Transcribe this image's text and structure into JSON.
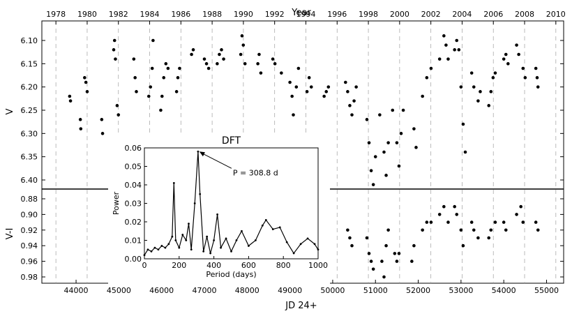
{
  "chart_data": {
    "type": "scatter",
    "top_axis_title": "Year",
    "bottom_axis_title": "JD 24+",
    "x_range": [
      43200,
      55400
    ],
    "year_range": [
      1977.1,
      2010.5
    ],
    "year_ticks": [
      "1978",
      "1980",
      "1982",
      "1984",
      "1986",
      "1988",
      "1990",
      "1992",
      "1994",
      "1996",
      "1998",
      "2000",
      "2002",
      "2004",
      "2006",
      "2008",
      "2010"
    ],
    "jd_ticks": [
      "44000",
      "45000",
      "46000",
      "47000",
      "48000",
      "49000",
      "50000",
      "51000",
      "52000",
      "53000",
      "54000",
      "55000"
    ],
    "v_panel": {
      "ylabel": "V",
      "ylim": [
        6.44,
        6.07
      ],
      "ticks": [
        "6.10",
        "6.15",
        "6.20",
        "6.25",
        "6.30",
        "6.35",
        "6.40"
      ],
      "points": [
        [
          43850,
          6.22
        ],
        [
          43870,
          6.23
        ],
        [
          44100,
          6.27
        ],
        [
          44110,
          6.29
        ],
        [
          44200,
          6.18
        ],
        [
          44230,
          6.19
        ],
        [
          44260,
          6.21
        ],
        [
          44600,
          6.27
        ],
        [
          44620,
          6.3
        ],
        [
          44880,
          6.12
        ],
        [
          44900,
          6.1
        ],
        [
          44920,
          6.14
        ],
        [
          44960,
          6.24
        ],
        [
          44990,
          6.26
        ],
        [
          45350,
          6.14
        ],
        [
          45380,
          6.18
        ],
        [
          45410,
          6.21
        ],
        [
          45700,
          6.22
        ],
        [
          45740,
          6.2
        ],
        [
          45780,
          6.16
        ],
        [
          45800,
          6.1
        ],
        [
          45980,
          6.25
        ],
        [
          46010,
          6.22
        ],
        [
          46050,
          6.18
        ],
        [
          46100,
          6.15
        ],
        [
          46150,
          6.16
        ],
        [
          46350,
          6.21
        ],
        [
          46380,
          6.18
        ],
        [
          46420,
          6.16
        ],
        [
          46700,
          6.13
        ],
        [
          46740,
          6.12
        ],
        [
          47000,
          6.14
        ],
        [
          47050,
          6.15
        ],
        [
          47100,
          6.16
        ],
        [
          47300,
          6.15
        ],
        [
          47350,
          6.13
        ],
        [
          47400,
          6.12
        ],
        [
          47450,
          6.14
        ],
        [
          47850,
          6.13
        ],
        [
          47880,
          6.09
        ],
        [
          47910,
          6.11
        ],
        [
          47950,
          6.15
        ],
        [
          48250,
          6.15
        ],
        [
          48280,
          6.13
        ],
        [
          48320,
          6.17
        ],
        [
          48600,
          6.14
        ],
        [
          48650,
          6.15
        ],
        [
          48800,
          6.17
        ],
        [
          49000,
          6.19
        ],
        [
          49050,
          6.22
        ],
        [
          49080,
          6.26
        ],
        [
          49150,
          6.2
        ],
        [
          49200,
          6.16
        ],
        [
          49400,
          6.21
        ],
        [
          49450,
          6.18
        ],
        [
          49500,
          6.2
        ],
        [
          49800,
          6.22
        ],
        [
          49850,
          6.21
        ],
        [
          49900,
          6.2
        ],
        [
          50300,
          6.19
        ],
        [
          50350,
          6.21
        ],
        [
          50400,
          6.24
        ],
        [
          50450,
          6.26
        ],
        [
          50500,
          6.23
        ],
        [
          50550,
          6.2
        ],
        [
          50800,
          6.27
        ],
        [
          50850,
          6.32
        ],
        [
          50900,
          6.38
        ],
        [
          50950,
          6.41
        ],
        [
          51000,
          6.35
        ],
        [
          51100,
          6.26
        ],
        [
          51200,
          6.34
        ],
        [
          51250,
          6.39
        ],
        [
          51300,
          6.32
        ],
        [
          51400,
          6.25
        ],
        [
          51500,
          6.32
        ],
        [
          51550,
          6.37
        ],
        [
          51600,
          6.3
        ],
        [
          51650,
          6.25
        ],
        [
          51900,
          6.29
        ],
        [
          51950,
          6.33
        ],
        [
          52100,
          6.22
        ],
        [
          52200,
          6.18
        ],
        [
          52300,
          6.16
        ],
        [
          52500,
          6.14
        ],
        [
          52600,
          6.09
        ],
        [
          52650,
          6.11
        ],
        [
          52700,
          6.14
        ],
        [
          52850,
          6.12
        ],
        [
          52900,
          6.1
        ],
        [
          52950,
          6.12
        ],
        [
          53000,
          6.2
        ],
        [
          53050,
          6.28
        ],
        [
          53100,
          6.34
        ],
        [
          53250,
          6.17
        ],
        [
          53300,
          6.2
        ],
        [
          53400,
          6.23
        ],
        [
          53450,
          6.21
        ],
        [
          53650,
          6.24
        ],
        [
          53700,
          6.21
        ],
        [
          53750,
          6.18
        ],
        [
          53800,
          6.17
        ],
        [
          54000,
          6.14
        ],
        [
          54050,
          6.13
        ],
        [
          54100,
          6.15
        ],
        [
          54300,
          6.11
        ],
        [
          54350,
          6.13
        ],
        [
          54450,
          6.16
        ],
        [
          54500,
          6.18
        ],
        [
          54750,
          6.16
        ],
        [
          54780,
          6.18
        ],
        [
          54800,
          6.2
        ]
      ]
    },
    "vi_panel": {
      "ylabel": "V-I",
      "ylim": [
        0.99,
        0.87
      ],
      "ticks": [
        "0.88",
        "0.90",
        "0.92",
        "0.94",
        "0.96",
        "0.98"
      ],
      "points": [
        [
          50350,
          0.92
        ],
        [
          50400,
          0.93
        ],
        [
          50450,
          0.94
        ],
        [
          50800,
          0.93
        ],
        [
          50850,
          0.95
        ],
        [
          50900,
          0.96
        ],
        [
          50950,
          0.97
        ],
        [
          51150,
          0.96
        ],
        [
          51200,
          0.98
        ],
        [
          51250,
          0.94
        ],
        [
          51300,
          0.92
        ],
        [
          51450,
          0.95
        ],
        [
          51500,
          0.96
        ],
        [
          51550,
          0.95
        ],
        [
          51850,
          0.96
        ],
        [
          51900,
          0.94
        ],
        [
          52100,
          0.92
        ],
        [
          52200,
          0.91
        ],
        [
          52300,
          0.91
        ],
        [
          52500,
          0.9
        ],
        [
          52600,
          0.89
        ],
        [
          52700,
          0.91
        ],
        [
          52850,
          0.89
        ],
        [
          52900,
          0.9
        ],
        [
          53000,
          0.92
        ],
        [
          53050,
          0.94
        ],
        [
          53250,
          0.91
        ],
        [
          53300,
          0.92
        ],
        [
          53400,
          0.93
        ],
        [
          53650,
          0.93
        ],
        [
          53700,
          0.92
        ],
        [
          53800,
          0.91
        ],
        [
          54000,
          0.91
        ],
        [
          54050,
          0.92
        ],
        [
          54300,
          0.9
        ],
        [
          54400,
          0.89
        ],
        [
          54450,
          0.91
        ],
        [
          54750,
          0.91
        ],
        [
          54800,
          0.92
        ]
      ]
    },
    "inset": {
      "title": "DFT",
      "xlabel": "Period (days)",
      "ylabel": "Power",
      "xlim": [
        0,
        1000
      ],
      "ylim": [
        0,
        0.06
      ],
      "x_ticks": [
        "0",
        "200",
        "400",
        "600",
        "800",
        "1000"
      ],
      "y_ticks": [
        "0.00",
        "0.01",
        "0.02",
        "0.03",
        "0.04",
        "0.05",
        "0.06"
      ],
      "annotation": "P = 308.8 d",
      "peak": [
        308.8,
        0.058
      ],
      "curve": [
        [
          0,
          0.002
        ],
        [
          20,
          0.005
        ],
        [
          40,
          0.004
        ],
        [
          60,
          0.006
        ],
        [
          80,
          0.005
        ],
        [
          100,
          0.007
        ],
        [
          120,
          0.006
        ],
        [
          140,
          0.008
        ],
        [
          160,
          0.012
        ],
        [
          170,
          0.041
        ],
        [
          180,
          0.01
        ],
        [
          200,
          0.006
        ],
        [
          220,
          0.013
        ],
        [
          240,
          0.01
        ],
        [
          255,
          0.019
        ],
        [
          270,
          0.005
        ],
        [
          290,
          0.03
        ],
        [
          308.8,
          0.058
        ],
        [
          320,
          0.035
        ],
        [
          340,
          0.004
        ],
        [
          360,
          0.012
        ],
        [
          380,
          0.003
        ],
        [
          400,
          0.01
        ],
        [
          420,
          0.024
        ],
        [
          440,
          0.006
        ],
        [
          470,
          0.011
        ],
        [
          500,
          0.004
        ],
        [
          530,
          0.01
        ],
        [
          560,
          0.015
        ],
        [
          600,
          0.007
        ],
        [
          640,
          0.01
        ],
        [
          680,
          0.018
        ],
        [
          700,
          0.021
        ],
        [
          740,
          0.016
        ],
        [
          780,
          0.017
        ],
        [
          820,
          0.009
        ],
        [
          860,
          0.003
        ],
        [
          900,
          0.008
        ],
        [
          940,
          0.011
        ],
        [
          980,
          0.008
        ],
        [
          1000,
          0.005
        ]
      ]
    }
  }
}
